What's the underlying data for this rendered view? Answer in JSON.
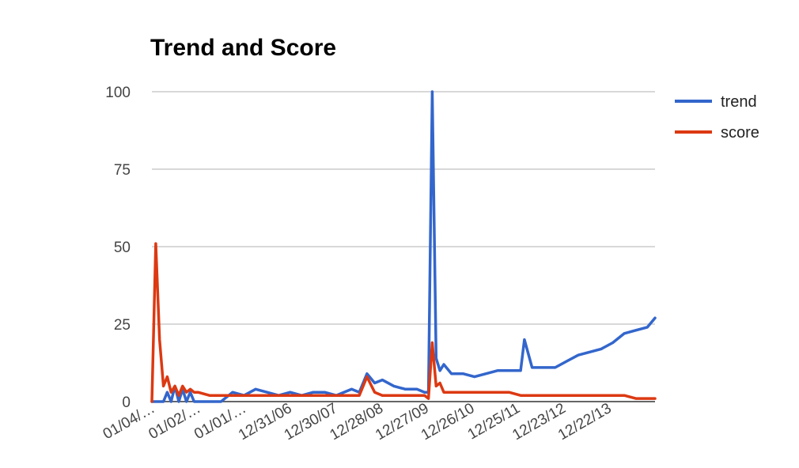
{
  "chart_data": {
    "type": "line",
    "title": "Trend and Score",
    "ylim": [
      0,
      100
    ],
    "yticks": [
      "0",
      "25",
      "50",
      "75",
      "100"
    ],
    "x_tick_labels": [
      "01/04/…",
      "01/02/…",
      "01/01/…",
      "12/31/06",
      "12/30/07",
      "12/28/08",
      "12/27/09",
      "12/26/10",
      "12/25/11",
      "12/23/12",
      "12/22/13"
    ],
    "grid": true,
    "legend_position": "right",
    "x": [
      "2004-01",
      "2004-02",
      "2004-03",
      "2004-04",
      "2004-05",
      "2004-06",
      "2004-07",
      "2004-08",
      "2004-09",
      "2004-10",
      "2004-11",
      "2004-12",
      "2005-01",
      "2005-04",
      "2005-07",
      "2005-10",
      "2006-01",
      "2006-04",
      "2006-07",
      "2006-10",
      "2007-01",
      "2007-04",
      "2007-07",
      "2007-10",
      "2008-01",
      "2008-03",
      "2008-05",
      "2008-07",
      "2008-09",
      "2008-11",
      "2009-01",
      "2009-04",
      "2009-07",
      "2009-10",
      "2009-12",
      "2010-01",
      "2010-02",
      "2010-03",
      "2010-04",
      "2010-05",
      "2010-07",
      "2010-10",
      "2011-01",
      "2011-04",
      "2011-07",
      "2011-10",
      "2012-01",
      "2012-02",
      "2012-04",
      "2012-07",
      "2012-10",
      "2013-01",
      "2013-04",
      "2013-07",
      "2013-10",
      "2014-01",
      "2014-04",
      "2014-07",
      "2014-10",
      "2014-12"
    ],
    "series": [
      {
        "name": "trend",
        "color": "#3366cc",
        "values": [
          0,
          0,
          0,
          0,
          3,
          0,
          5,
          0,
          4,
          0,
          3,
          0,
          0,
          0,
          0,
          3,
          2,
          4,
          3,
          2,
          3,
          2,
          3,
          3,
          2,
          3,
          4,
          3,
          9,
          6,
          7,
          5,
          4,
          4,
          3,
          3,
          100,
          14,
          10,
          12,
          9,
          9,
          8,
          9,
          10,
          10,
          10,
          20,
          11,
          11,
          11,
          13,
          15,
          16,
          17,
          19,
          22,
          23,
          24,
          27
        ]
      },
      {
        "name": "score",
        "color": "#dc3912",
        "values": [
          0,
          51,
          20,
          5,
          8,
          3,
          5,
          2,
          5,
          3,
          4,
          3,
          3,
          2,
          2,
          2,
          2,
          2,
          2,
          2,
          2,
          2,
          2,
          2,
          2,
          2,
          2,
          2,
          8,
          3,
          2,
          2,
          2,
          2,
          2,
          1,
          19,
          5,
          6,
          3,
          3,
          3,
          3,
          3,
          3,
          3,
          2,
          2,
          2,
          2,
          2,
          2,
          2,
          2,
          2,
          2,
          2,
          1,
          1,
          1
        ]
      }
    ]
  }
}
